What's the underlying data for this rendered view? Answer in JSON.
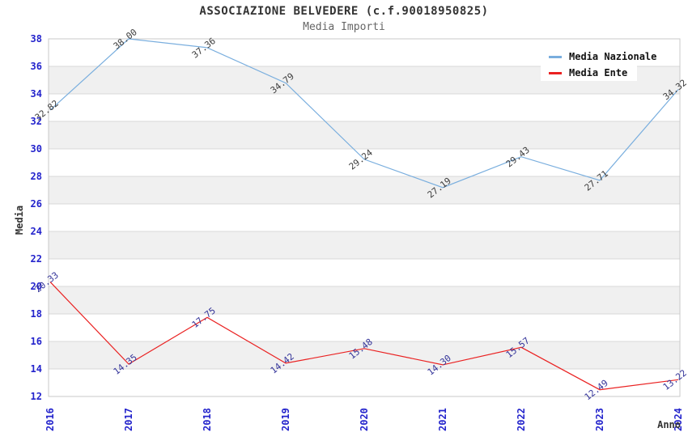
{
  "chart_data": {
    "type": "line",
    "title": "ASSOCIAZIONE BELVEDERE (c.f.90018950825)",
    "subtitle": "Media Importi",
    "xlabel": "Anno",
    "ylabel": "Media",
    "x": [
      "2016",
      "2017",
      "2018",
      "2019",
      "2020",
      "2021",
      "2022",
      "2023",
      "2024"
    ],
    "ylim": [
      12,
      38
    ],
    "ytick_step": 2,
    "grid": true,
    "legend_position": "top-right",
    "series": [
      {
        "name": "Media Nazionale",
        "color": "#79aede",
        "label_color": "#3c3c3c",
        "values": [
          32.82,
          38.0,
          37.36,
          34.79,
          29.24,
          27.19,
          29.43,
          27.71,
          34.32
        ]
      },
      {
        "name": "Media Ente",
        "color": "#ea2121",
        "label_color": "#333399",
        "values": [
          20.33,
          14.35,
          17.75,
          14.42,
          15.48,
          14.3,
          15.57,
          12.49,
          13.22
        ]
      }
    ],
    "colors": {
      "tick_label": "#2424cc",
      "band_even": "#ffffff",
      "band_odd": "#f0f0f0",
      "gridline": "#d9d9d9",
      "plot_border": "#c9c9c9",
      "title": "#333333",
      "subtitle": "#666666"
    }
  }
}
